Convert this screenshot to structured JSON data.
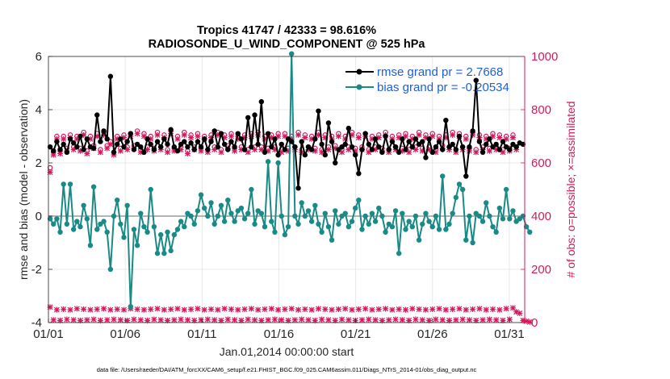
{
  "chart_data": {
    "type": "line",
    "title": "Tropics 41747 / 42333 = 98.616%",
    "subtitle": "RADIOSONDE_U_WIND_COMPONENT @ 525 hPa",
    "xlabel": "Jan.01,2014 00:00:00 start",
    "ylabel_left": "rmse and bias (model - observation)",
    "ylabel_right": "# of obs: o=possible; ×=assimilated",
    "xlim": [
      0,
      31
    ],
    "ylim_left": [
      -4,
      6
    ],
    "ylim_right": [
      0,
      1000
    ],
    "x_ticks": [
      0,
      5,
      10,
      15,
      20,
      25,
      30
    ],
    "x_tick_labels": [
      "01/01",
      "01/06",
      "01/11",
      "01/16",
      "01/21",
      "01/26",
      "01/31"
    ],
    "y_ticks_left": [
      -4,
      -2,
      0,
      2,
      4,
      6
    ],
    "y_tick_labels_left": [
      "-4",
      "-2",
      "0",
      "2",
      "4",
      "6"
    ],
    "y_ticks_right": [
      0,
      200,
      400,
      600,
      800,
      1000
    ],
    "y_tick_labels_right": [
      "0",
      "200",
      "400",
      "600",
      "800",
      "1000"
    ],
    "grid": true,
    "legend_position": "top-right",
    "colors": {
      "rmse": "#000000",
      "bias": "#1a8a86",
      "obs": "#d6185e",
      "zero": "#b4b4b4",
      "legend_text": "#1f5fd6"
    },
    "series": [
      {
        "name": "rmse grand pr = 2.7668",
        "axis": "left",
        "values": [
          2.6,
          2.45,
          2.8,
          2.5,
          2.7,
          2.4,
          2.9,
          2.75,
          2.6,
          3.0,
          2.5,
          2.9,
          2.6,
          2.55,
          3.8,
          2.8,
          3.2,
          2.9,
          5.25,
          2.4,
          2.7,
          2.9,
          2.6,
          2.8,
          3.1,
          2.5,
          2.7,
          2.6,
          2.4,
          2.9,
          2.7,
          2.5,
          2.8,
          2.6,
          2.9,
          2.7,
          3.25,
          2.6,
          2.45,
          2.7,
          2.8,
          2.6,
          2.75,
          2.5,
          2.8,
          2.6,
          2.9,
          2.5,
          2.8,
          3.2,
          2.6,
          3.1,
          2.7,
          2.5,
          2.8,
          2.6,
          3.1,
          2.9,
          2.5,
          3.7,
          2.6,
          3.8,
          2.7,
          4.3,
          2.4,
          3.1,
          2.6,
          2.9,
          2.3,
          2.7,
          2.5,
          2.9,
          2.8,
          2.6,
          1.05,
          2.8,
          2.3,
          2.6,
          2.5,
          2.9,
          3.95,
          2.7,
          2.3,
          3.5,
          2.8,
          2.0,
          2.5,
          2.6,
          2.7,
          3.3,
          2.6,
          2.3,
          1.6,
          2.5,
          3.1,
          2.7,
          2.5,
          2.9,
          2.6,
          2.4,
          3.0,
          2.5,
          2.8,
          2.6,
          2.4,
          2.9,
          2.5,
          2.8,
          2.6,
          2.9,
          2.7,
          2.8,
          2.2,
          2.9,
          2.4,
          2.6,
          2.8,
          2.5,
          3.6,
          2.6,
          2.7,
          2.5,
          3.0,
          2.6,
          1.5,
          2.6,
          3.2,
          5.1,
          2.8,
          2.4,
          2.7,
          2.9,
          2.6,
          2.7,
          2.5,
          2.8,
          2.6,
          2.5,
          2.7,
          2.6,
          2.75,
          2.7
        ]
      },
      {
        "name": "bias grand pr = -0.20534",
        "axis": "left",
        "values": [
          -0.1,
          -0.3,
          -0.1,
          -0.6,
          1.2,
          -0.3,
          1.2,
          -0.5,
          -0.2,
          -0.4,
          0.4,
          -0.1,
          -1.1,
          1.1,
          -0.5,
          -0.3,
          -0.2,
          -0.6,
          -2.0,
          0.0,
          0.6,
          -0.3,
          -0.8,
          0.4,
          -3.4,
          -0.5,
          -1.1,
          0.1,
          -0.4,
          -0.6,
          1.0,
          -0.4,
          -1.4,
          -0.7,
          -1.4,
          -0.6,
          -1.3,
          -0.7,
          -0.5,
          -0.2,
          -0.4,
          0.1,
          0.0,
          -0.3,
          0.2,
          0.8,
          0.3,
          0.0,
          0.5,
          -0.3,
          0.0,
          0.4,
          -0.2,
          0.6,
          0.1,
          -0.2,
          0.2,
          0.3,
          -0.1,
          0.1,
          1.0,
          -0.3,
          0.2,
          0.1,
          -0.4,
          2.05,
          -0.2,
          -0.6,
          2.0,
          0.0,
          -0.7,
          -0.4,
          6.1,
          0.0,
          -0.3,
          0.5,
          0.0,
          0.2,
          -0.2,
          0.4,
          -0.3,
          -0.6,
          0.1,
          -0.4,
          -0.9,
          0.2,
          -0.3,
          0.0,
          0.1,
          -0.4,
          -0.2,
          0.3,
          0.6,
          -0.5,
          0.0,
          -0.3,
          0.1,
          -0.2,
          0.3,
          0.0,
          -0.6,
          -0.3,
          -0.4,
          0.2,
          -1.4,
          0.1,
          -0.5,
          -0.2,
          -0.4,
          0.0,
          -0.9,
          -0.3,
          0.1,
          -0.2,
          -0.4,
          0.0,
          -0.5,
          1.5,
          -0.5,
          -0.3,
          0.1,
          0.7,
          1.2,
          1.0,
          -0.9,
          0.0,
          -1.0,
          0.1,
          0.0,
          -0.2,
          0.5,
          0.0,
          -0.4,
          -0.6,
          0.3,
          -0.1,
          1.0,
          -0.1,
          0.2,
          -0.2,
          -0.1,
          0.0,
          -0.4,
          -0.6
        ]
      },
      {
        "name": "possible obs",
        "axis": "right",
        "values": [
          582,
          640,
          700,
          645,
          700,
          655,
          705,
          660,
          700,
          655,
          715,
          645,
          700,
          665,
          710,
          650,
          715,
          665,
          680,
          640,
          700,
          655,
          705,
          660,
          710,
          665,
          720,
          650,
          710,
          660,
          700,
          655,
          715,
          660,
          705,
          650,
          720,
          655,
          700,
          660,
          715,
          645,
          705,
          660,
          710,
          655,
          700,
          650,
          705,
          660,
          715,
          650,
          705,
          665,
          710,
          655,
          700,
          660,
          705,
          650,
          710,
          660,
          715,
          660,
          700,
          655,
          705,
          660,
          710,
          650,
          710,
          655,
          700,
          660,
          715,
          650,
          705,
          660,
          700,
          655,
          715,
          650,
          705,
          660,
          700,
          665,
          710,
          650,
          700,
          660,
          715,
          655,
          705,
          660,
          710,
          650,
          700,
          660,
          705,
          655,
          715,
          650,
          700,
          660,
          705,
          655,
          710,
          650,
          700,
          660,
          715,
          655,
          705,
          660,
          710,
          650,
          700,
          665,
          705,
          660,
          715,
          650,
          710,
          660,
          700,
          655,
          715,
          650,
          705,
          660,
          700,
          655,
          710,
          660,
          705,
          650,
          700,
          655,
          705,
          660
        ]
      },
      {
        "name": "assimilated obs",
        "axis": "right",
        "values": [
          565,
          630,
          690,
          635,
          690,
          645,
          695,
          650,
          690,
          645,
          705,
          635,
          690,
          655,
          700,
          640,
          705,
          655,
          670,
          630,
          690,
          645,
          695,
          650,
          700,
          655,
          710,
          640,
          700,
          650,
          690,
          645,
          705,
          650,
          695,
          640,
          710,
          645,
          690,
          650,
          705,
          635,
          695,
          650,
          700,
          645,
          690,
          640,
          695,
          650,
          705,
          640,
          695,
          655,
          700,
          645,
          690,
          650,
          695,
          640,
          700,
          650,
          705,
          650,
          690,
          645,
          695,
          650,
          700,
          640,
          700,
          645,
          690,
          650,
          705,
          640,
          695,
          650,
          690,
          645,
          705,
          640,
          695,
          650,
          690,
          655,
          700,
          640,
          690,
          650,
          705,
          645,
          695,
          650,
          700,
          640,
          690,
          650,
          695,
          645,
          705,
          640,
          690,
          650,
          695,
          645,
          700,
          640,
          690,
          650,
          705,
          645,
          695,
          650,
          700,
          640,
          690,
          655,
          695,
          650,
          705,
          640,
          700,
          650,
          690,
          645,
          705,
          640,
          695,
          650,
          690,
          645,
          700,
          650,
          695,
          640,
          690,
          645,
          695,
          650
        ]
      },
      {
        "name": "possible obs low",
        "axis": "right",
        "values": [
          58,
          10,
          48,
          8,
          50,
          12,
          48,
          10,
          52,
          8,
          50,
          10,
          48,
          12,
          50,
          8,
          52,
          10,
          48,
          12,
          50,
          10,
          48,
          8,
          52,
          12,
          50,
          10,
          48,
          8,
          50,
          12,
          52,
          10,
          48,
          8,
          50,
          10,
          52,
          12,
          48,
          10,
          50,
          8,
          52,
          10,
          48,
          12,
          50,
          10,
          48,
          8,
          52,
          12,
          50,
          10,
          48,
          8,
          50,
          12,
          52,
          10,
          48,
          8,
          50,
          10,
          52,
          12,
          48,
          10,
          50,
          8,
          52,
          10,
          48,
          12,
          50,
          10,
          48,
          8,
          52,
          12,
          50,
          10,
          48,
          8,
          50,
          12,
          52,
          10,
          48,
          8,
          50,
          10,
          52,
          12,
          48,
          10,
          50,
          8,
          52,
          10,
          48,
          12,
          50,
          10,
          48,
          8,
          52,
          12,
          50,
          10,
          48,
          8,
          50,
          12,
          52,
          10,
          48,
          8,
          50,
          10,
          52,
          12,
          48,
          10,
          50,
          8,
          52,
          10,
          48,
          12,
          50,
          10,
          48,
          8,
          52,
          12,
          55,
          40,
          35,
          8,
          5,
          2
        ]
      }
    ]
  },
  "footer": "data file: /Users/raeder/DAI/ATM_forcXX/CAM6_setup/f.e21.FHIST_BGC.f09_025.CAM6assim.011/Diags_NTrS_2014-01/obs_diag_output.nc"
}
